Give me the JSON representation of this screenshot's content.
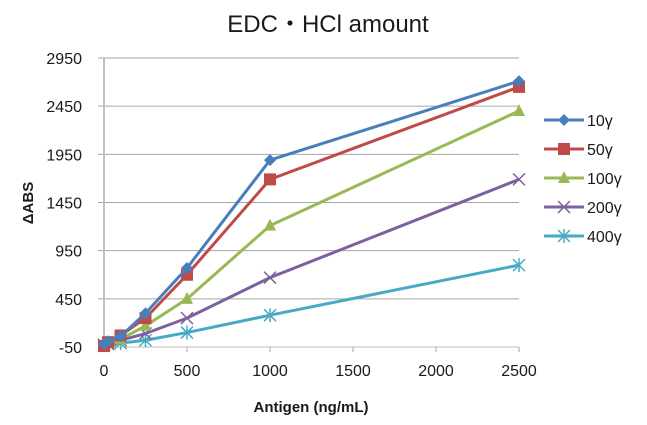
{
  "chart_data": {
    "type": "line",
    "title": "EDC・HCl amount",
    "xlabel": "Antigen (ng/mL)",
    "ylabel": "ΔABS",
    "x": [
      0,
      25,
      100,
      250,
      500,
      1000,
      2500
    ],
    "xlim": [
      0,
      2500
    ],
    "ylim": [
      -50,
      2950
    ],
    "xticks": [
      "0",
      "500",
      "1000",
      "1500",
      "2000",
      "2500"
    ],
    "yticks": [
      "-50",
      "450",
      "950",
      "1450",
      "1950",
      "2450",
      "2950"
    ],
    "grid": "horizontal",
    "legend_position": "right",
    "series": [
      {
        "name": "10γ",
        "color": "#4a7ebb",
        "marker": "diamond",
        "values": [
          -20,
          10,
          60,
          300,
          770,
          1890,
          2710
        ]
      },
      {
        "name": "50γ",
        "color": "#be4b48",
        "marker": "square",
        "values": [
          -40,
          0,
          70,
          250,
          700,
          1690,
          2650
        ]
      },
      {
        "name": "100γ",
        "color": "#98b954",
        "marker": "triangle",
        "values": [
          -30,
          -10,
          30,
          170,
          450,
          1210,
          2400
        ]
      },
      {
        "name": "200γ",
        "color": "#7d60a0",
        "marker": "x",
        "values": [
          -30,
          -15,
          20,
          90,
          250,
          670,
          1690
        ]
      },
      {
        "name": "400γ",
        "color": "#46aac5",
        "marker": "star",
        "values": [
          -30,
          -20,
          -10,
          20,
          100,
          280,
          800
        ]
      }
    ]
  }
}
